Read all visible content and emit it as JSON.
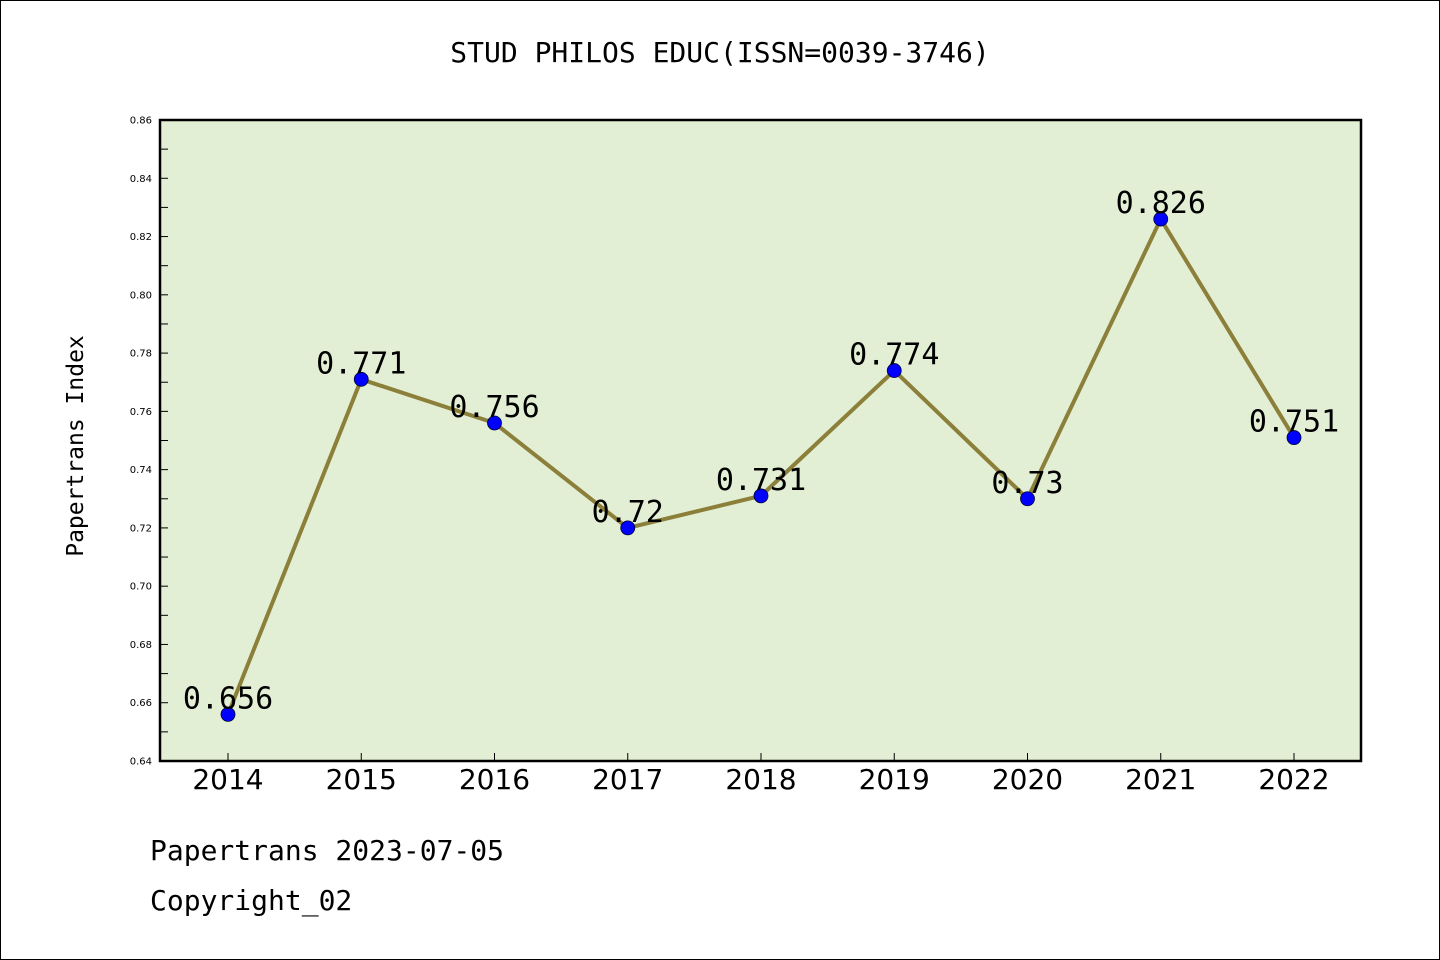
{
  "chart_data": {
    "type": "line",
    "title": "STUD PHILOS EDUC(ISSN=0039-3746)",
    "xlabel": "",
    "ylabel": "Papertrans Index",
    "categories": [
      "2014",
      "2015",
      "2016",
      "2017",
      "2018",
      "2019",
      "2020",
      "2021",
      "2022"
    ],
    "series": [
      {
        "values": [
          0.656,
          0.771,
          0.756,
          0.72,
          0.731,
          0.774,
          0.73,
          0.826,
          0.751
        ],
        "data_labels": [
          "0.656",
          "0.771",
          "0.756",
          "0.72",
          "0.731",
          "0.774",
          "0.73",
          "0.826",
          "0.751"
        ]
      }
    ],
    "ylim": [
      0.64,
      0.86
    ],
    "yticks": [
      "0.64",
      "0.66",
      "0.68",
      "0.70",
      "0.72",
      "0.74",
      "0.76",
      "0.78",
      "0.80",
      "0.82",
      "0.84",
      "0.86"
    ],
    "grid": false,
    "colors": {
      "plot_background": "#e2efd4",
      "line": "#8b7f3a",
      "marker": "#0000ff"
    }
  },
  "footer": {
    "source": "Papertrans 2023-07-05",
    "copyright": "Copyright_02"
  }
}
